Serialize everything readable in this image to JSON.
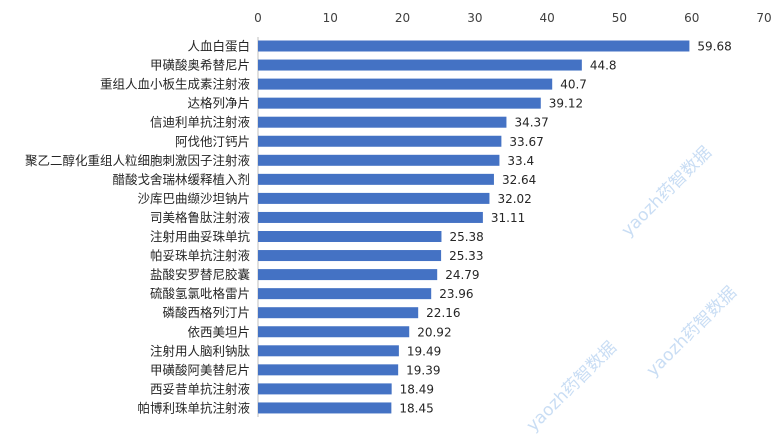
{
  "chart_data": {
    "type": "bar",
    "orientation": "horizontal",
    "categories": [
      "人血白蛋白",
      "甲磺酸奥希替尼片",
      "重组人血小板生成素注射液",
      "达格列净片",
      "信迪利单抗注射液",
      "阿伐他汀钙片",
      "聚乙二醇化重组人粒细胞刺激因子注射液",
      "醋酸戈舍瑞林缓释植入剂",
      "沙库巴曲缬沙坦钠片",
      "司美格鲁肽注射液",
      "注射用曲妥珠单抗",
      "帕妥珠单抗注射液",
      "盐酸安罗替尼胶囊",
      "硫酸氢氯吡格雷片",
      "磷酸西格列汀片",
      "依西美坦片",
      "注射用人脑利钠肽",
      "甲磺酸阿美替尼片",
      "西妥昔单抗注射液",
      "帕博利珠单抗注射液"
    ],
    "values": [
      59.68,
      44.8,
      40.7,
      39.12,
      34.37,
      33.67,
      33.4,
      32.64,
      32.02,
      31.11,
      25.38,
      25.33,
      24.79,
      23.96,
      22.16,
      20.92,
      19.49,
      19.39,
      18.49,
      18.45
    ],
    "xlim": [
      0,
      70
    ],
    "xticks": [
      0,
      10,
      20,
      30,
      40,
      50,
      60,
      70
    ],
    "axis_position": "top",
    "grid": false,
    "data_labels": true,
    "bar_color": "#4472C4"
  },
  "watermark": "yaozh药智数据"
}
